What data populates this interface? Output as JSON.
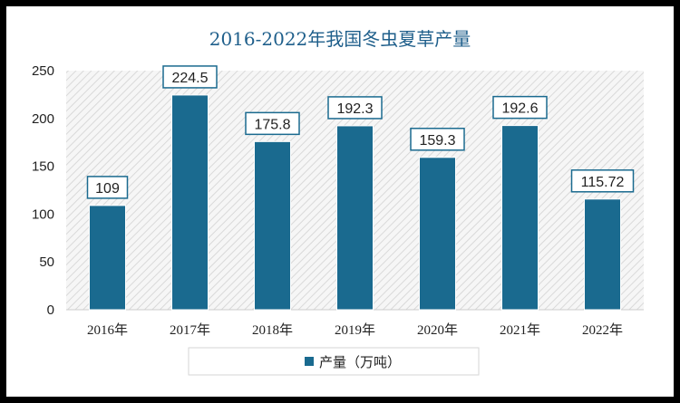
{
  "chart_data": {
    "type": "bar",
    "title": "2016-2022年我国冬虫夏草产量",
    "categories": [
      "2016年",
      "2017年",
      "2018年",
      "2019年",
      "2020年",
      "2021年",
      "2022年"
    ],
    "series": [
      {
        "name": "产量（万吨）",
        "values": [
          109,
          224.5,
          175.8,
          192.3,
          159.3,
          192.6,
          115.72
        ],
        "labels": [
          "109",
          "224.5",
          "175.8",
          "192.3",
          "159.3",
          "192.6",
          "115.72"
        ]
      }
    ],
    "yticks": [
      0,
      50,
      100,
      150,
      200,
      250
    ],
    "ylim": [
      0,
      250
    ],
    "xlabel": "",
    "ylabel": "",
    "legend": "bottom-center",
    "grid": false
  },
  "colors": {
    "bar": "#1a6a8f",
    "title": "#1f5f8b",
    "label_border": "#1a6a8f",
    "plot_hatch": "#d9d9d9",
    "frame": "#000000"
  }
}
